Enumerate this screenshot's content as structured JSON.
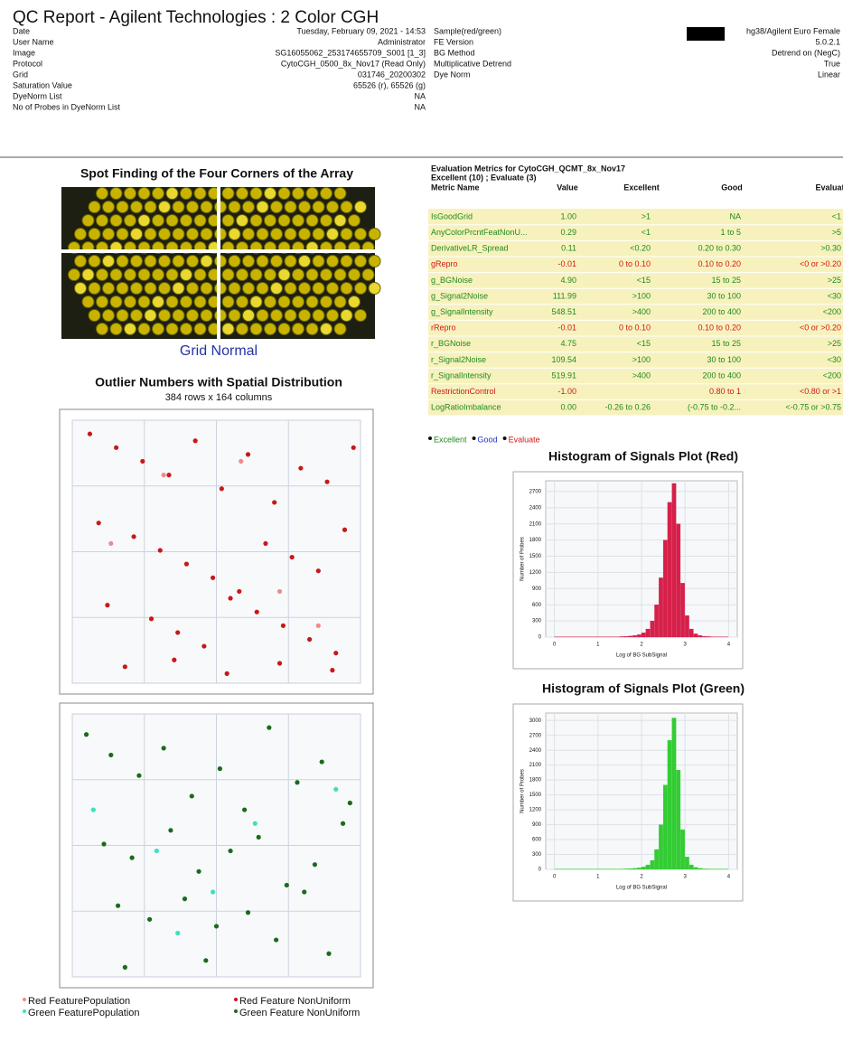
{
  "header": {
    "title": "QC Report - Agilent Technologies : 2 Color CGH",
    "left_fields": [
      {
        "label": "Date",
        "value": "Tuesday, February 09, 2021 - 14:53"
      },
      {
        "label": "User Name",
        "value": "Administrator"
      },
      {
        "label": "Image",
        "value": "SG16055062_253174655709_S001 [1_3]"
      },
      {
        "label": "Protocol",
        "value": "CytoCGH_0500_8x_Nov17 (Read Only)"
      },
      {
        "label": "Grid",
        "value": "031746_20200302"
      },
      {
        "label": "Saturation Value",
        "value": "65526 (r), 65526 (g)"
      },
      {
        "label": "DyeNorm List",
        "value": "NA"
      },
      {
        "label": "No of Probes in DyeNorm List",
        "value": "NA"
      }
    ],
    "right_fields": [
      {
        "label": "Sample(red/green)",
        "value": "hg38/Agilent Euro Female"
      },
      {
        "label": "FE Version",
        "value": "5.0.2.1"
      },
      {
        "label": "BG Method",
        "value": "Detrend on (NegC)"
      },
      {
        "label": "Multiplicative Detrend",
        "value": "True"
      },
      {
        "label": "Dye Norm",
        "value": "Linear"
      }
    ]
  },
  "spot_finding": {
    "title": "Spot Finding of the Four Corners of the Array",
    "status": "Grid Normal"
  },
  "outliers": {
    "title": "Outlier Numbers with Spatial Distribution",
    "subtitle": "384 rows x 164 columns",
    "xlim": [
      0,
      164
    ],
    "ylim": [
      0,
      384
    ],
    "plots": [
      {
        "series": [
          {
            "name": "Red FeaturePopulation",
            "color": "#f08a8a",
            "x": [
              52,
              118,
              22,
              96,
              140
            ],
            "y": [
              80,
              250,
              180,
              60,
              300
            ]
          },
          {
            "name": "Red Feature NonUniform",
            "color": "#c81818",
            "x": [
              10,
              25,
              40,
              55,
              70,
              85,
              100,
              115,
              130,
              145,
              160,
              15,
              35,
              50,
              65,
              80,
              95,
              110,
              125,
              140,
              155,
              20,
              45,
              60,
              75,
              90,
              105,
              120,
              135,
              150,
              30,
              58,
              88,
              118,
              148
            ],
            "y": [
              20,
              40,
              60,
              80,
              30,
              100,
              50,
              120,
              70,
              90,
              40,
              150,
              170,
              190,
              210,
              230,
              250,
              180,
              200,
              220,
              160,
              270,
              290,
              310,
              330,
              260,
              280,
              300,
              320,
              340,
              360,
              350,
              370,
              355,
              365
            ]
          }
        ]
      },
      {
        "series": [
          {
            "name": "Green FeaturePopulation",
            "color": "#3de0c0",
            "x": [
              12,
              48,
              104,
              150,
              80,
              60
            ],
            "y": [
              140,
              200,
              160,
              110,
              260,
              320
            ]
          },
          {
            "name": "Green Feature NonUniform",
            "color": "#1a6b1a",
            "x": [
              8,
              22,
              38,
              52,
              68,
              84,
              98,
              112,
              128,
              142,
              158,
              18,
              34,
              56,
              72,
              90,
              106,
              122,
              138,
              154,
              26,
              44,
              64,
              82,
              100,
              116,
              132,
              146,
              30,
              76
            ],
            "y": [
              30,
              60,
              90,
              50,
              120,
              80,
              140,
              20,
              100,
              70,
              130,
              190,
              210,
              170,
              230,
              200,
              180,
              250,
              220,
              160,
              280,
              300,
              270,
              310,
              290,
              330,
              260,
              350,
              370,
              360
            ]
          }
        ]
      }
    ]
  },
  "evaluation": {
    "title": "Evaluation Metrics for CytoCGH_QCMT_8x_Nov17",
    "summary": "Excellent (10) ; Evaluate (3)",
    "columns": [
      "Metric Name",
      "Value",
      "Excellent",
      "Good",
      "Evaluate"
    ],
    "rows": [
      {
        "color": "#1f8a1f",
        "cells": [
          "IsGoodGrid",
          "1.00",
          ">1",
          "NA",
          "<1"
        ]
      },
      {
        "color": "#1f8a1f",
        "cells": [
          "AnyColorPrcntFeatNonU...",
          "0.29",
          "<1",
          "1 to 5",
          ">5"
        ]
      },
      {
        "color": "#1f8a1f",
        "cells": [
          "DerivativeLR_Spread",
          "0.11",
          "<0.20",
          "0.20 to 0.30",
          ">0.30"
        ]
      },
      {
        "color": "#d01818",
        "cells": [
          "gRepro",
          "-0.01",
          "0 to 0.10",
          "0.10 to 0.20",
          "<0 or >0.20"
        ]
      },
      {
        "color": "#1f8a1f",
        "cells": [
          "g_BGNoise",
          "4.90",
          "<15",
          "15 to 25",
          ">25"
        ]
      },
      {
        "color": "#1f8a1f",
        "cells": [
          "g_Signal2Noise",
          "111.99",
          ">100",
          "30 to 100",
          "<30"
        ]
      },
      {
        "color": "#1f8a1f",
        "cells": [
          "g_SignalIntensity",
          "548.51",
          ">400",
          "200 to 400",
          "<200"
        ]
      },
      {
        "color": "#d01818",
        "cells": [
          "rRepro",
          "-0.01",
          "0 to 0.10",
          "0.10 to 0.20",
          "<0 or >0.20"
        ]
      },
      {
        "color": "#1f8a1f",
        "cells": [
          "r_BGNoise",
          "4.75",
          "<15",
          "15 to 25",
          ">25"
        ]
      },
      {
        "color": "#1f8a1f",
        "cells": [
          "r_Signal2Noise",
          "109.54",
          ">100",
          "30 to 100",
          "<30"
        ]
      },
      {
        "color": "#1f8a1f",
        "cells": [
          "r_SignalIntensity",
          "519.91",
          ">400",
          "200 to 400",
          "<200"
        ]
      },
      {
        "color": "#d01818",
        "cells": [
          "RestrictionControl",
          "-1.00",
          null,
          "0.80 to 1",
          "<0.80 or >1"
        ]
      },
      {
        "color": "#1f8a1f",
        "cells": [
          "LogRatioImbalance",
          "0.00",
          "-0.26 to 0.26",
          "(-0.75 to -0.2...",
          "<-0.75 or >0.75"
        ]
      }
    ],
    "legend": [
      {
        "name": "Excellent",
        "color": "#1f8a1f"
      },
      {
        "name": "Good",
        "color": "#2233cc"
      },
      {
        "name": "Evaluate",
        "color": "#d01818"
      }
    ]
  },
  "histograms": [
    {
      "type": "histogram",
      "title": "Histogram of Signals Plot (Red)",
      "x_label": "Log of BG SubSignal",
      "y_label": "Number of Probes",
      "color": "#d6204a",
      "xlim": [
        -0.2,
        4.2
      ],
      "xticks": [
        0,
        1,
        2,
        3,
        4
      ],
      "ylim": [
        0,
        2900
      ],
      "yticks": [
        0,
        300,
        600,
        900,
        1200,
        1500,
        1800,
        2100,
        2400,
        2700
      ],
      "bins": [
        0,
        0.1,
        0.2,
        0.3,
        0.4,
        0.5,
        0.6,
        0.7,
        0.8,
        0.9,
        1,
        1.1,
        1.2,
        1.3,
        1.4,
        1.5,
        1.6,
        1.7,
        1.8,
        1.9,
        2,
        2.1,
        2.2,
        2.3,
        2.4,
        2.5,
        2.6,
        2.7,
        2.8,
        2.9,
        3,
        3.1,
        3.2,
        3.3,
        3.4,
        3.5,
        3.6,
        3.7,
        3.8,
        3.9,
        4
      ],
      "counts": [
        5,
        5,
        5,
        5,
        5,
        5,
        5,
        5,
        5,
        5,
        5,
        5,
        5,
        5,
        5,
        10,
        15,
        20,
        30,
        45,
        80,
        150,
        300,
        600,
        1100,
        1800,
        2500,
        2850,
        2100,
        1000,
        400,
        150,
        60,
        30,
        15,
        10,
        5,
        5,
        5,
        5
      ]
    },
    {
      "type": "histogram",
      "title": "Histogram of Signals Plot (Green)",
      "x_label": "Log of BG SubSignal",
      "y_label": "Number of Probes",
      "color": "#33cc33",
      "xlim": [
        -0.2,
        4.2
      ],
      "xticks": [
        0,
        1,
        2,
        3,
        4
      ],
      "ylim": [
        0,
        3150
      ],
      "yticks": [
        0,
        300,
        600,
        900,
        1200,
        1500,
        1800,
        2100,
        2400,
        2700,
        3000
      ],
      "bins": [
        0,
        0.1,
        0.2,
        0.3,
        0.4,
        0.5,
        0.6,
        0.7,
        0.8,
        0.9,
        1,
        1.1,
        1.2,
        1.3,
        1.4,
        1.5,
        1.6,
        1.7,
        1.8,
        1.9,
        2,
        2.1,
        2.2,
        2.3,
        2.4,
        2.5,
        2.6,
        2.7,
        2.8,
        2.9,
        3,
        3.1,
        3.2,
        3.3,
        3.4,
        3.5,
        3.6,
        3.7,
        3.8,
        3.9,
        4
      ],
      "counts": [
        5,
        5,
        5,
        5,
        5,
        5,
        5,
        5,
        5,
        5,
        5,
        5,
        5,
        5,
        5,
        8,
        10,
        15,
        20,
        30,
        50,
        90,
        180,
        400,
        900,
        1700,
        2600,
        3050,
        2000,
        800,
        250,
        90,
        40,
        20,
        10,
        8,
        5,
        5,
        5,
        5
      ]
    }
  ]
}
